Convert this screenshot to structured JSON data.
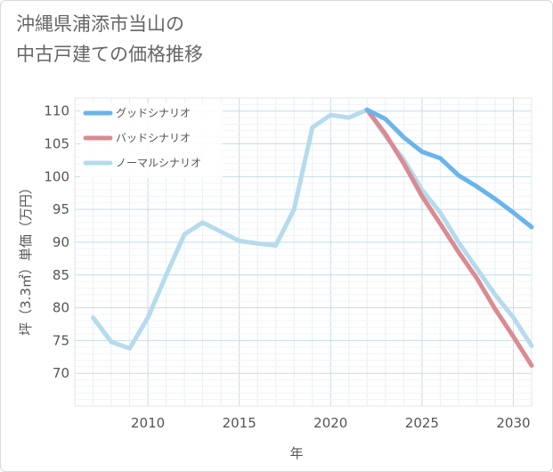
{
  "chart_data": {
    "type": "line",
    "title": "沖縄県浦添市当山の\n中古戸建ての価格推移",
    "xlabel": "年",
    "ylabel": "坪（3.3㎡）単価（万円）",
    "xlim": [
      2006,
      2031
    ],
    "ylim": [
      65,
      112
    ],
    "x_ticks": [
      2010,
      2015,
      2020,
      2025,
      2030
    ],
    "y_ticks": [
      70,
      75,
      80,
      85,
      90,
      95,
      100,
      105,
      110
    ],
    "grid": true,
    "legend_position": "top-left",
    "series": [
      {
        "name": "グッドシナリオ",
        "color": "#6ab4ec",
        "x": [
          2022,
          2023,
          2024,
          2025,
          2026,
          2027,
          2028,
          2029,
          2030,
          2031
        ],
        "y": [
          110.2,
          108.8,
          106.0,
          103.8,
          102.8,
          100.2,
          98.5,
          96.6,
          94.5,
          92.3
        ]
      },
      {
        "name": "バッドシナリオ",
        "color": "#db8a92",
        "x": [
          2022,
          2023,
          2024,
          2025,
          2026,
          2027,
          2028,
          2029,
          2030,
          2031
        ],
        "y": [
          110.2,
          106.5,
          102.0,
          97.0,
          92.8,
          88.5,
          84.5,
          79.8,
          75.6,
          71.2
        ]
      },
      {
        "name": "ノーマルシナリオ",
        "color": "#b5dbec",
        "x": [
          2007,
          2008,
          2009,
          2010,
          2011,
          2012,
          2013,
          2014,
          2015,
          2016,
          2017,
          2018,
          2019,
          2020,
          2021,
          2022,
          2023,
          2024,
          2025,
          2026,
          2027,
          2028,
          2029,
          2030,
          2031
        ],
        "y": [
          78.5,
          74.8,
          73.8,
          78.5,
          85.0,
          91.2,
          93.0,
          91.6,
          90.2,
          89.8,
          89.5,
          95.0,
          107.5,
          109.4,
          109.0,
          110.2,
          106.2,
          102.6,
          98.0,
          94.5,
          90.0,
          86.0,
          82.0,
          78.5,
          74.2
        ]
      }
    ]
  }
}
